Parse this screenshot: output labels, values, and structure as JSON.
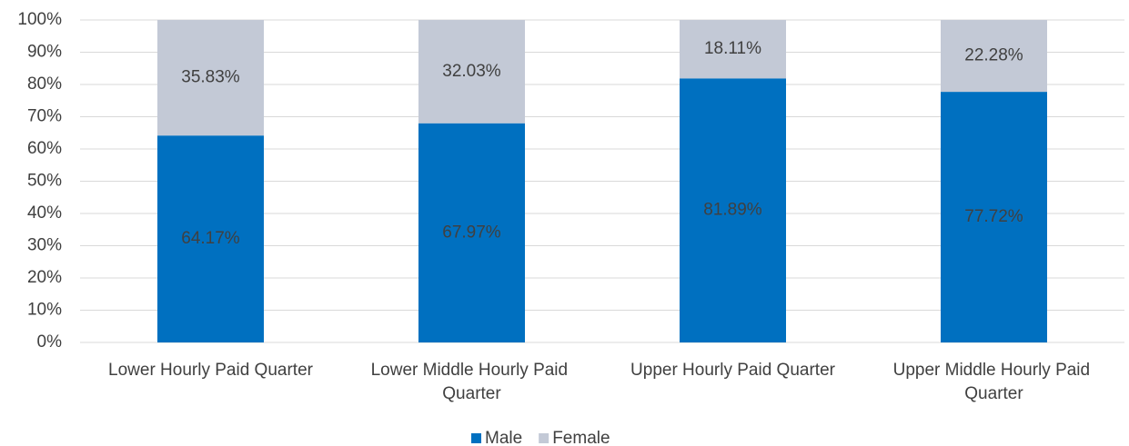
{
  "chart_data": {
    "type": "stacked_bar",
    "categories": [
      "Lower Hourly Paid Quarter",
      "Lower Middle Hourly Paid Quarter",
      "Upper Hourly Paid Quarter",
      "Upper Middle Hourly Paid Quarter"
    ],
    "series": [
      {
        "name": "Male",
        "color": "#0070c0",
        "values": [
          64.17,
          67.97,
          81.89,
          77.72
        ],
        "value_labels": [
          "64.17%",
          "67.97%",
          "81.89%",
          "77.72%"
        ]
      },
      {
        "name": "Female",
        "color": "#c3c9d6",
        "values": [
          35.83,
          32.03,
          18.11,
          22.28
        ],
        "value_labels": [
          "35.83%",
          "32.03%",
          "18.11%",
          "22.28%"
        ]
      }
    ],
    "ylim": [
      0,
      100
    ],
    "yticks": [
      {
        "value": 0,
        "label": "0%"
      },
      {
        "value": 10,
        "label": "10%"
      },
      {
        "value": 20,
        "label": "20%"
      },
      {
        "value": 30,
        "label": "30%"
      },
      {
        "value": 40,
        "label": "40%"
      },
      {
        "value": 50,
        "label": "50%"
      },
      {
        "value": 60,
        "label": "60%"
      },
      {
        "value": 70,
        "label": "70%"
      },
      {
        "value": 80,
        "label": "80%"
      },
      {
        "value": 90,
        "label": "90%"
      },
      {
        "value": 100,
        "label": "100%"
      }
    ],
    "grid": true,
    "legend": "bottom"
  }
}
